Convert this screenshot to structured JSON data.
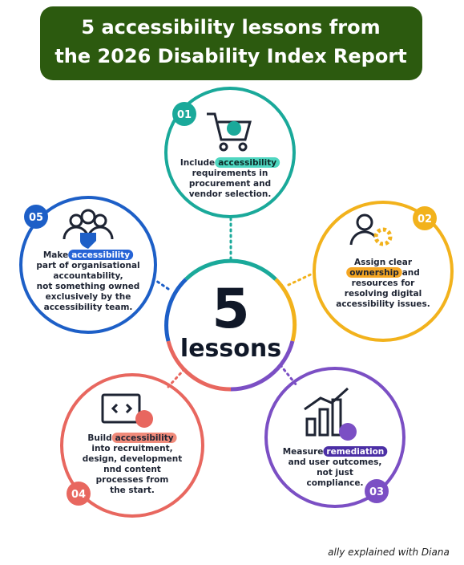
{
  "header": {
    "title_lines": [
      "5 accessibility lessons from",
      "the 2026 Disability Index Report"
    ]
  },
  "center": {
    "number": "5",
    "label": "lessons"
  },
  "lessons": [
    {
      "number": "01",
      "lines": [
        [
          {
            "text": "Include "
          },
          {
            "mark": "accessibility"
          }
        ],
        [
          {
            "text": "requirements in"
          }
        ],
        [
          {
            "text": "procurement and"
          }
        ],
        [
          {
            "text": "vendor selection."
          }
        ]
      ]
    },
    {
      "number": "02",
      "lines": [
        [
          {
            "text": "Assign clear"
          }
        ],
        [
          {
            "mark": "ownership"
          },
          {
            "text": " and"
          }
        ],
        [
          {
            "text": "resources for"
          }
        ],
        [
          {
            "text": "resolving digital"
          }
        ],
        [
          {
            "text": "accessibility issues."
          }
        ]
      ]
    },
    {
      "number": "03",
      "lines": [
        [
          {
            "text": "Measure "
          },
          {
            "mark": "remediation"
          }
        ],
        [
          {
            "text": "and user outcomes,"
          }
        ],
        [
          {
            "text": "not just"
          }
        ],
        [
          {
            "text": "compliance."
          }
        ]
      ]
    },
    {
      "number": "04",
      "lines": [
        [
          {
            "text": "Build "
          },
          {
            "mark": "accessibility"
          }
        ],
        [
          {
            "text": "into recruitment,"
          }
        ],
        [
          {
            "text": "design, development"
          }
        ],
        [
          {
            "text": "nnd content"
          }
        ],
        [
          {
            "text": "processes from"
          }
        ],
        [
          {
            "text": "the start."
          }
        ]
      ]
    },
    {
      "number": "05",
      "lines": [
        [
          {
            "text": "Make "
          },
          {
            "mark": "accessibility"
          }
        ],
        [
          {
            "text": "part of organisational"
          }
        ],
        [
          {
            "text": "accountability,"
          }
        ],
        [
          {
            "text": "not something owned"
          }
        ],
        [
          {
            "text": "exclusively by the"
          }
        ],
        [
          {
            "text": "accessibility team."
          }
        ]
      ]
    }
  ],
  "footer": {
    "credit": "ally explained with Diana"
  }
}
